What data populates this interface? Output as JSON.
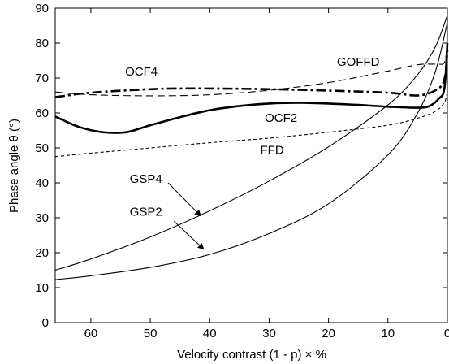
{
  "chart_data": {
    "type": "line",
    "xlabel": "Velocity contrast (1 - p) × %",
    "ylabel": "Phase angle θ (°)",
    "xlim": [
      66,
      0
    ],
    "ylim": [
      0,
      90
    ],
    "x_ticks": [
      60,
      50,
      40,
      30,
      20,
      10,
      0
    ],
    "y_ticks": [
      0,
      10,
      20,
      30,
      40,
      50,
      60,
      70,
      80,
      90
    ],
    "grid": false,
    "legend": "none",
    "series": [
      {
        "name": "GOFFD",
        "style": "dashed",
        "points": [
          [
            66,
            66
          ],
          [
            60,
            65.2
          ],
          [
            50,
            64.9
          ],
          [
            40,
            65.2
          ],
          [
            30,
            66.5
          ],
          [
            20,
            68.7
          ],
          [
            10,
            72
          ],
          [
            5,
            73.8
          ],
          [
            2,
            74
          ],
          [
            0.5,
            74.5
          ],
          [
            0,
            80
          ]
        ]
      },
      {
        "name": "OCF4",
        "style": "dashdot",
        "points": [
          [
            66,
            64.5
          ],
          [
            60,
            65.8
          ],
          [
            50,
            66.8
          ],
          [
            45,
            67
          ],
          [
            40,
            67
          ],
          [
            30,
            66.8
          ],
          [
            20,
            66.4
          ],
          [
            10,
            65.8
          ],
          [
            5,
            65
          ],
          [
            2,
            66.5
          ],
          [
            0.5,
            69.5
          ],
          [
            0,
            78
          ]
        ]
      },
      {
        "name": "OCF2",
        "style": "solid-thick",
        "points": [
          [
            66,
            59
          ],
          [
            62,
            56
          ],
          [
            58,
            54.5
          ],
          [
            54,
            54.5
          ],
          [
            50,
            56.5
          ],
          [
            45,
            58.8
          ],
          [
            40,
            60.8
          ],
          [
            35,
            62
          ],
          [
            30,
            62.7
          ],
          [
            25,
            62.9
          ],
          [
            20,
            62.7
          ],
          [
            15,
            62.3
          ],
          [
            10,
            61.8
          ],
          [
            5,
            61.5
          ],
          [
            3,
            62
          ],
          [
            1.5,
            64
          ],
          [
            0.5,
            67
          ],
          [
            0,
            80
          ]
        ]
      },
      {
        "name": "FFD",
        "style": "dotted",
        "points": [
          [
            66,
            47.5
          ],
          [
            60,
            48.5
          ],
          [
            50,
            50
          ],
          [
            40,
            51.5
          ],
          [
            30,
            52.8
          ],
          [
            20,
            54.5
          ],
          [
            10,
            56.5
          ],
          [
            5,
            58.5
          ],
          [
            2,
            60.5
          ],
          [
            0.5,
            63
          ],
          [
            0,
            66
          ]
        ]
      },
      {
        "name": "GSP4",
        "style": "solid",
        "points": [
          [
            66,
            15
          ],
          [
            60,
            18.2
          ],
          [
            50,
            24.5
          ],
          [
            40,
            32
          ],
          [
            30,
            40.5
          ],
          [
            20,
            50.3
          ],
          [
            10,
            62.3
          ],
          [
            5,
            71
          ],
          [
            2,
            79
          ],
          [
            0,
            88
          ]
        ]
      },
      {
        "name": "GSP2",
        "style": "solid",
        "points": [
          [
            66,
            12.3
          ],
          [
            60,
            13.4
          ],
          [
            50,
            15.8
          ],
          [
            40,
            19.5
          ],
          [
            30,
            25.5
          ],
          [
            20,
            34
          ],
          [
            10,
            48
          ],
          [
            5,
            60
          ],
          [
            2,
            72
          ],
          [
            0,
            86
          ]
        ]
      }
    ],
    "annotations": [
      {
        "text": "OCF4",
        "x": 51.5,
        "y": 70.7,
        "anchor": "middle"
      },
      {
        "text": "GOFFD",
        "x": 15,
        "y": 73.5,
        "anchor": "middle"
      },
      {
        "text": "OCF2",
        "x": 28,
        "y": 57.5,
        "anchor": "middle"
      },
      {
        "text": "FFD",
        "x": 29.5,
        "y": 48.2,
        "anchor": "middle"
      },
      {
        "text": "GSP4",
        "x": 48,
        "y": 40,
        "anchor": "end",
        "arrow_from": [
          47,
          40
        ],
        "arrow_to": [
          41.5,
          30.5
        ]
      },
      {
        "text": "GSP2",
        "x": 48,
        "y": 30.6,
        "anchor": "end",
        "arrow_from": [
          46,
          29
        ],
        "arrow_to": [
          41,
          21
        ]
      }
    ]
  }
}
